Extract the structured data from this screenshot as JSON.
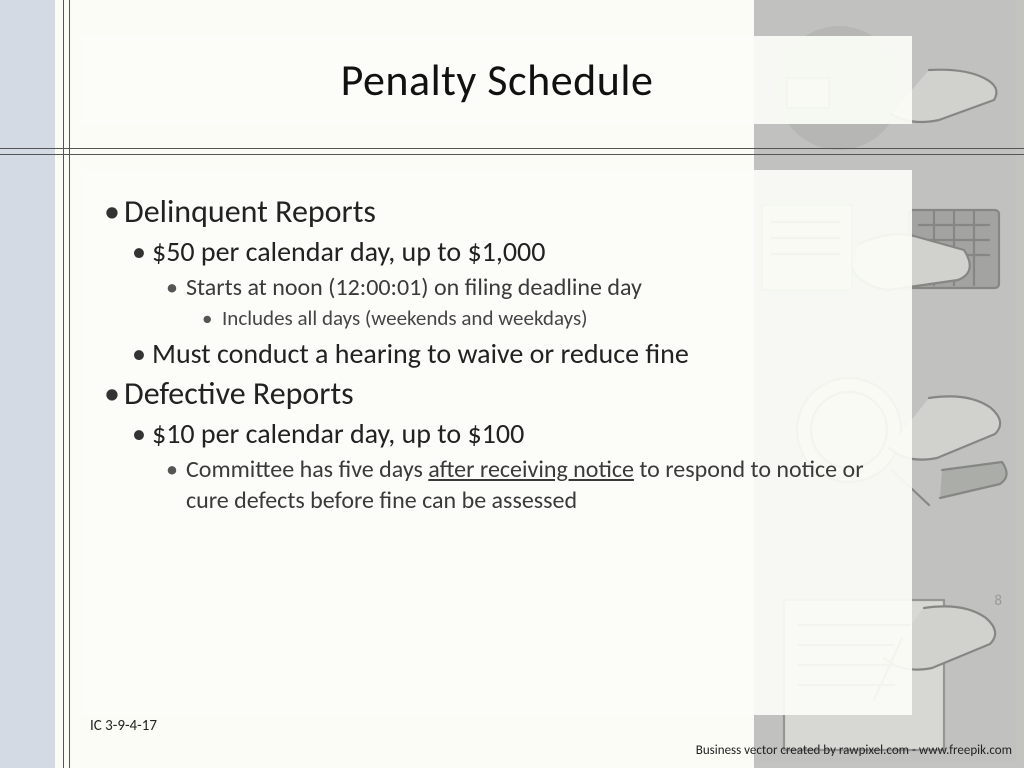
{
  "slide": {
    "title": "Penalty Schedule",
    "page_number": "8",
    "footnote": "IC 3-9-4-17",
    "attribution": "Business vector created by rawpixel.com - www.freepik.com",
    "bullets": [
      {
        "level": 1,
        "text": "Delinquent Reports"
      },
      {
        "level": 2,
        "text": "$50 per calendar day, up to $1,000"
      },
      {
        "level": 3,
        "text": "Starts at noon (12:00:01) on filing deadline day"
      },
      {
        "level": 4,
        "text": "Includes all days (weekends and weekdays)"
      },
      {
        "level": 2,
        "text": "Must conduct a hearing to waive or reduce fine"
      },
      {
        "level": 1,
        "text": "Defective Reports"
      },
      {
        "level": 2,
        "text": "$10 per calendar day, up to $100"
      },
      {
        "level": 3,
        "text_pre": "Committee has five days ",
        "text_underlined": "after receiving notice",
        "text_post": " to respond to notice or cure defects before fine can be assessed"
      }
    ]
  },
  "layout": {
    "h_line_top_1": 148,
    "h_line_top_2": 154,
    "v_line_left_1": 63,
    "v_line_left_2": 69,
    "colors": {
      "left_band": "#d4dae4",
      "right_band": "#b8b9b6",
      "background": "#fbfcf6",
      "panel_bg": "rgba(252,253,247,0.92)",
      "line": "#555555",
      "title": "#111111",
      "body": "#222222",
      "sub": "#454545",
      "page_num": "#999999"
    },
    "fonts": {
      "title_size": 44,
      "lvl1_size": 32,
      "lvl2_size": 28,
      "lvl3_size": 24,
      "lvl4_size": 21,
      "footnote_size": 15,
      "attribution_size": 13
    }
  }
}
